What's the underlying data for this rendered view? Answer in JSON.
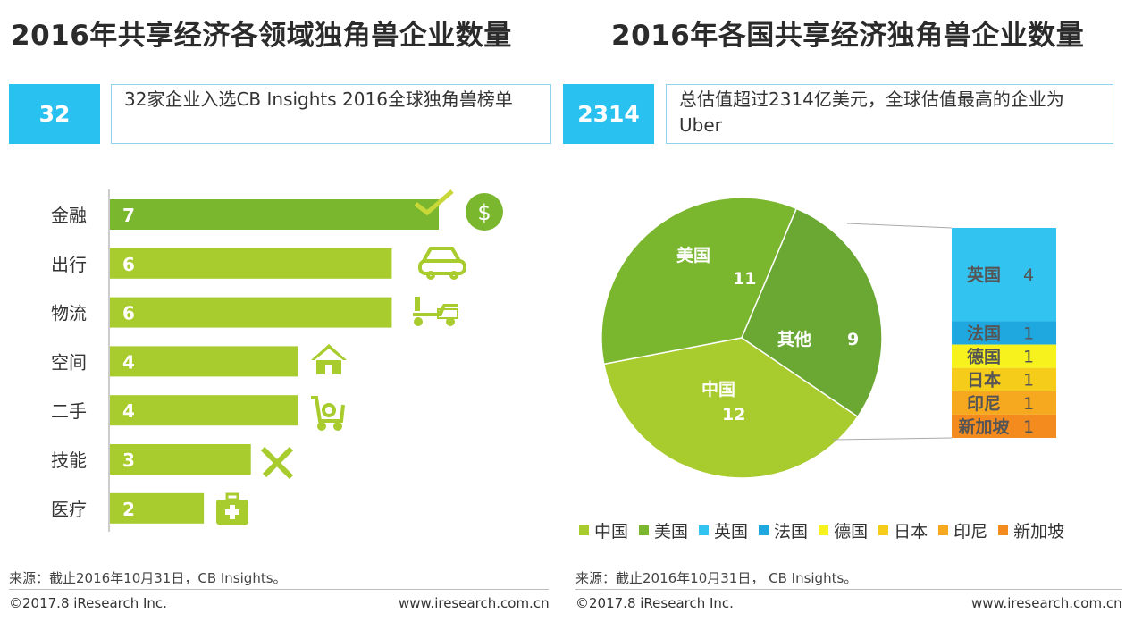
{
  "left": {
    "title": "2016年共享经济各领域独角兽企业数量",
    "stat_number": "32",
    "stat_text": "32家企业入选CB Insights 2016全球独角兽榜单",
    "source": "来源：截止2016年10月31日，CB Insights。",
    "footer_left": "©2017.8 iResearch Inc.",
    "footer_right": "www.iresearch.com.cn"
  },
  "right": {
    "title": "2016年各国共享经济独角兽企业数量",
    "stat_number": "2314",
    "stat_text": "总估值超过2314亿美元，全球估值最高的企业为Uber",
    "source": "来源：截止2016年10月31日， CB Insights。",
    "footer_left": "©2017.8 iResearch Inc.",
    "footer_right": "www.iresearch.com.cn"
  },
  "icons": [
    "dollar-icon",
    "car-icon",
    "scooter-icon",
    "house-icon",
    "cart-icon",
    "tools-icon",
    "medical-kit-icon"
  ],
  "chart_data": [
    {
      "type": "bar",
      "orientation": "horizontal",
      "categories": [
        "金融",
        "出行",
        "物流",
        "空间",
        "二手",
        "技能",
        "医疗"
      ],
      "values": [
        7,
        6,
        6,
        4,
        4,
        3,
        2
      ],
      "colors": [
        "#7ab62e",
        "#a8cb2e",
        "#a8cb2e",
        "#a8cb2e",
        "#a8cb2e",
        "#a8cb2e",
        "#a8cb2e"
      ],
      "xlim": [
        0,
        7
      ]
    },
    {
      "type": "pie",
      "slices": [
        {
          "label": "中国",
          "value": 12,
          "color": "#a8cb2e"
        },
        {
          "label": "美国",
          "value": 11,
          "color": "#7ab62e"
        },
        {
          "label": "其他",
          "value": 9,
          "color": "#6aa833"
        }
      ],
      "breakdown": [
        {
          "label": "英国",
          "value": 4,
          "color": "#33c3f0"
        },
        {
          "label": "法国",
          "value": 1,
          "color": "#1fa8e0"
        },
        {
          "label": "德国",
          "value": 1,
          "color": "#f7f21e"
        },
        {
          "label": "日本",
          "value": 1,
          "color": "#f6cc1a"
        },
        {
          "label": "印尼",
          "value": 1,
          "color": "#f6a91e"
        },
        {
          "label": "新加坡",
          "value": 1,
          "color": "#f48b1e"
        }
      ],
      "legend": [
        {
          "label": "中国",
          "color": "#a8cb2e"
        },
        {
          "label": "美国",
          "color": "#7ab62e"
        },
        {
          "label": "英国",
          "color": "#33c3f0"
        },
        {
          "label": "法国",
          "color": "#1fa8e0"
        },
        {
          "label": "德国",
          "color": "#f7f21e"
        },
        {
          "label": "日本",
          "color": "#f6cc1a"
        },
        {
          "label": "印尼",
          "color": "#f6a91e"
        },
        {
          "label": "新加坡",
          "color": "#f48b1e"
        }
      ],
      "legend_position": "bottom"
    }
  ]
}
